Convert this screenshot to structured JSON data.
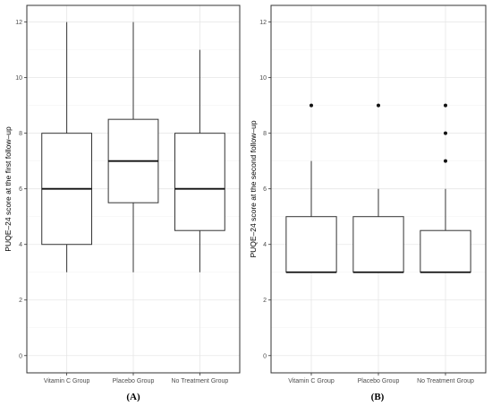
{
  "chart_data": [
    {
      "type": "box",
      "panel_label": "(A)",
      "ylabel": "PUQE–24 score at the first follow–up",
      "ylim": [
        0,
        12.5
      ],
      "yticks": [
        "0",
        "2",
        "4",
        "6",
        "8",
        "10",
        "12"
      ],
      "categories": [
        "Vitamin C Group",
        "Placebo Group",
        "No Treatment Group"
      ],
      "boxes": [
        {
          "min": 3,
          "q1": 4,
          "median": 6,
          "q3": 8,
          "max": 12,
          "outliers": []
        },
        {
          "min": 3,
          "q1": 5.5,
          "median": 7,
          "q3": 8.5,
          "max": 12,
          "outliers": []
        },
        {
          "min": 3,
          "q1": 4.5,
          "median": 6,
          "q3": 8,
          "max": 11,
          "outliers": []
        }
      ],
      "grid": true
    },
    {
      "type": "box",
      "panel_label": "(B)",
      "ylabel": "PUQE–24 score at the second follow–up",
      "ylim": [
        0,
        12.5
      ],
      "yticks": [
        "0",
        "2",
        "4",
        "6",
        "8",
        "10",
        "12"
      ],
      "categories": [
        "Vitamin C Group",
        "Placebo Group",
        "No Treatment Group"
      ],
      "boxes": [
        {
          "min": 3,
          "q1": 3,
          "median": 3,
          "q3": 5,
          "max": 7,
          "outliers": [
            9
          ]
        },
        {
          "min": 3,
          "q1": 3,
          "median": 3,
          "q3": 5,
          "max": 6,
          "outliers": [
            9
          ]
        },
        {
          "min": 3,
          "q1": 3,
          "median": 3,
          "q3": 4.5,
          "max": 6,
          "outliers": [
            7,
            8,
            9
          ]
        }
      ],
      "grid": true
    }
  ]
}
